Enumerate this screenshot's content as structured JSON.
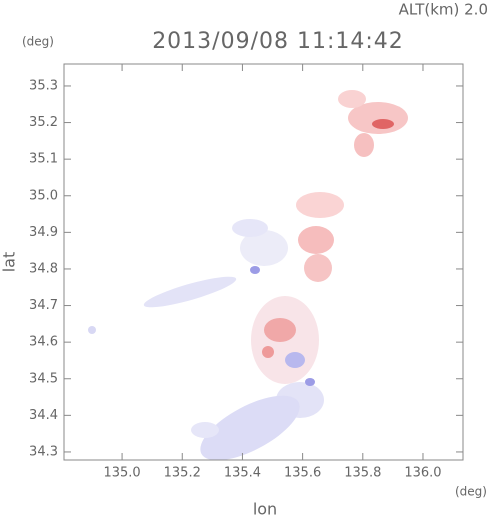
{
  "chart_data": {
    "type": "map",
    "title": "2013/09/08 11:14:42",
    "annotation": "ALT(km)  2.0",
    "x_label": "lon",
    "y_label": "lat",
    "x_unit": "(deg)",
    "y_unit": "(deg)",
    "xlim": [
      134.807,
      136.133
    ],
    "ylim": [
      34.278,
      35.36
    ],
    "xticks": [
      {
        "value": 135,
        "label": "135.0"
      },
      135.2,
      135.4,
      135.6,
      135.8,
      {
        "value": 136,
        "label": "136.0"
      }
    ],
    "yticks": [
      34.3,
      34.4,
      34.5,
      34.6,
      34.7,
      34.8,
      34.9,
      {
        "value": 35,
        "label": "35.0"
      },
      35.1,
      35.2,
      35.3
    ]
  }
}
